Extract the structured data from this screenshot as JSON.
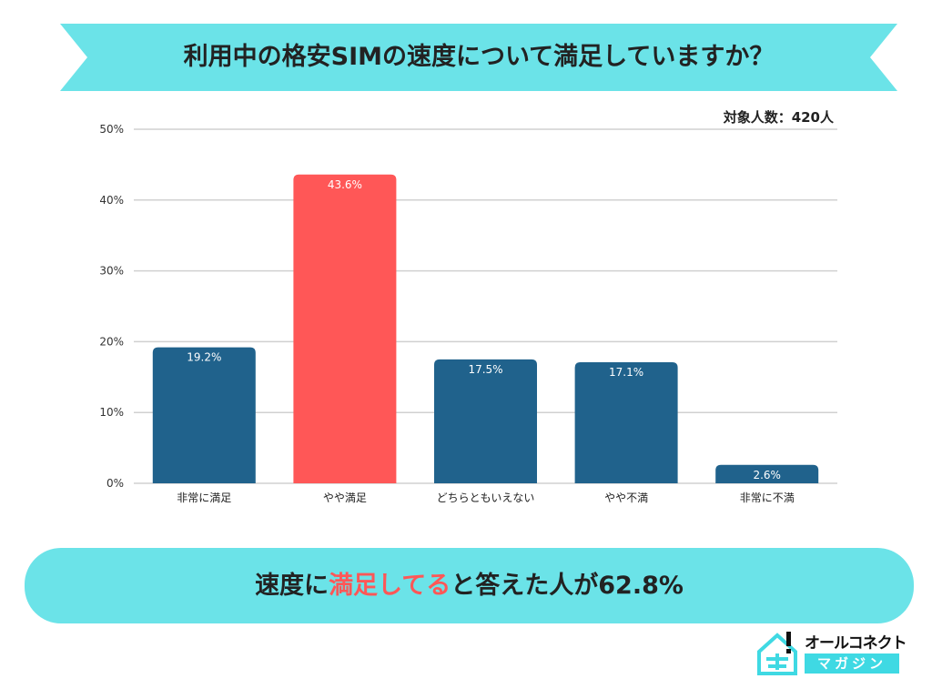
{
  "title": "利用中の格安SIMの速度について満足していますか？",
  "sample_size": "対象人数：420人",
  "summary": {
    "before": "速度に",
    "highlight": "満足してる",
    "after": "と答えた人が62.8%"
  },
  "logo": {
    "top": "オールコネクト",
    "bottom": "マガジン"
  },
  "colors": {
    "banner": "#6be3e8",
    "bar": "#20628c",
    "highlight": "#ff5757"
  },
  "chart_data": {
    "type": "bar",
    "categories": [
      "非常に満足",
      "やや満足",
      "どちらともいえない",
      "やや不満",
      "非常に不満"
    ],
    "values": [
      19.2,
      43.6,
      17.5,
      17.1,
      2.6
    ],
    "labels": [
      "19.2%",
      "43.6%",
      "17.5%",
      "17.1%",
      "2.6%"
    ],
    "highlight_index": 1,
    "ylim": [
      0,
      50
    ],
    "yticks": [
      "0%",
      "10%",
      "20%",
      "30%",
      "40%",
      "50%"
    ],
    "grid": true
  }
}
